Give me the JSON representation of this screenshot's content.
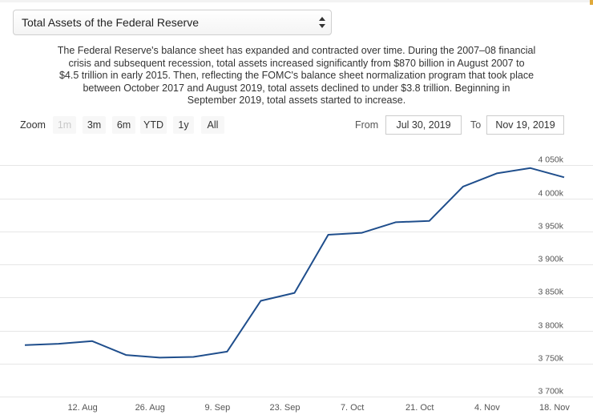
{
  "selector": {
    "value": "Total Assets of the Federal Reserve"
  },
  "description": [
    "The Federal Reserve's balance sheet has expanded and contracted over time. During the 2007–08 financial",
    "crisis and subsequent recession, total assets increased significantly from $870 billion in August 2007 to",
    "$4.5 trillion in early 2015. Then, reflecting the FOMC's balance sheet normalization program that took place",
    "between October 2017 and August 2019, total assets declined to under $3.8 trillion. Beginning in",
    "September 2019, total assets started to increase."
  ],
  "zoom": {
    "label": "Zoom",
    "buttons": [
      {
        "label": "1m",
        "enabled": false
      },
      {
        "label": "3m",
        "enabled": true
      },
      {
        "label": "6m",
        "enabled": true
      },
      {
        "label": "YTD",
        "enabled": true
      },
      {
        "label": "1y",
        "enabled": true
      },
      {
        "label": "All",
        "enabled": true
      }
    ]
  },
  "range": {
    "from_label": "From",
    "from_value": "Jul 30, 2019",
    "to_label": "To",
    "to_value": "Nov 19, 2019"
  },
  "colors": {
    "line": "#1f4e8c",
    "grid": "#e6e6e6"
  },
  "chart_data": {
    "type": "line",
    "grid": true,
    "ylim": [
      3700,
      4070
    ],
    "y_ticks": [
      3700,
      3750,
      3800,
      3850,
      3900,
      3950,
      4000,
      4050
    ],
    "y_tick_labels": [
      "3 700k",
      "3 750k",
      "3 800k",
      "3 850k",
      "3 900k",
      "3 950k",
      "4 000k",
      "4 050k"
    ],
    "x_ticks": [
      "2019-08-12",
      "2019-08-26",
      "2019-09-09",
      "2019-09-23",
      "2019-10-07",
      "2019-10-21",
      "2019-11-04",
      "2019-11-18"
    ],
    "x_tick_labels": [
      "12. Aug",
      "26. Aug",
      "9. Sep",
      "23. Sep",
      "7. Oct",
      "21. Oct",
      "4. Nov",
      "18. Nov"
    ],
    "xlim": [
      "2019-07-30",
      "2019-11-20"
    ],
    "series": [
      {
        "x": [
          "2019-07-31",
          "2019-08-07",
          "2019-08-14",
          "2019-08-21",
          "2019-08-28",
          "2019-09-04",
          "2019-09-11",
          "2019-09-18",
          "2019-09-25",
          "2019-10-02",
          "2019-10-09",
          "2019-10-16",
          "2019-10-23",
          "2019-10-30",
          "2019-11-06",
          "2019-11-13",
          "2019-11-20"
        ],
        "y": [
          3778,
          3780,
          3784,
          3763,
          3759,
          3760,
          3768,
          3845,
          3857,
          3945,
          3948,
          3964,
          3966,
          4018,
          4038,
          4046,
          4032
        ]
      }
    ]
  }
}
